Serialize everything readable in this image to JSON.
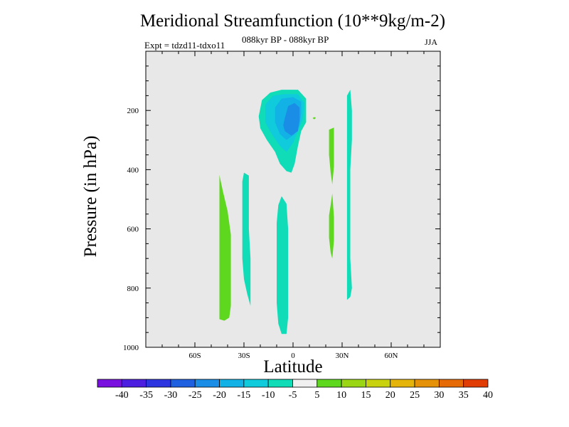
{
  "chart_data": {
    "type": "contour",
    "title": "Meridional Streamfunction (10**9kg/m-2)",
    "subtitle": "088kyr BP - 088kyr BP",
    "left_label": "Expt = tdzd11-tdxo11",
    "right_label": "JJA",
    "xlabel": "Latitude",
    "ylabel": "Pressure (in hPa)",
    "xlim": [
      -90,
      90
    ],
    "ylim": [
      1000,
      0
    ],
    "x_ticks": [
      -60,
      -30,
      0,
      30,
      60
    ],
    "x_tick_labels": [
      "60S",
      "30S",
      "0",
      "30N",
      "60N"
    ],
    "y_ticks": [
      200,
      400,
      600,
      800,
      1000
    ],
    "y_tick_labels": [
      "200",
      "400",
      "600",
      "800",
      "1000"
    ],
    "background_color": "#e8e8e8",
    "colorbar": {
      "labels": [
        "-40",
        "-35",
        "-30",
        "-25",
        "-20",
        "-15",
        "-10",
        "-5",
        "5",
        "10",
        "15",
        "20",
        "25",
        "30",
        "35",
        "40"
      ],
      "colors": [
        "#7a10e0",
        "#4b1ee0",
        "#2c35e0",
        "#1e60e0",
        "#1a8ee6",
        "#13b2e6",
        "#0fcbdc",
        "#10dcb8",
        "#f0f0f0",
        "#5ed81e",
        "#9ad614",
        "#c8d20e",
        "#e4b40a",
        "#e69208",
        "#e66a06",
        "#e03c04"
      ]
    },
    "regions": [
      {
        "name": "region-green-50s",
        "level": "5 to 10",
        "color": "#5ed81e",
        "points": [
          [
            -45,
            418
          ],
          [
            -43,
            470
          ],
          [
            -40,
            540
          ],
          [
            -38,
            620
          ],
          [
            -38,
            700
          ],
          [
            -38,
            780
          ],
          [
            -38,
            860
          ],
          [
            -39,
            900
          ],
          [
            -42,
            910
          ],
          [
            -45,
            905
          ],
          [
            -45,
            850
          ],
          [
            -45,
            750
          ],
          [
            -45,
            650
          ],
          [
            -45,
            550
          ]
        ]
      },
      {
        "name": "region-cyan-30s",
        "level": "-10 to -5",
        "color": "#10dcb8",
        "points": [
          [
            -30,
            410
          ],
          [
            -27,
            420
          ],
          [
            -27,
            500
          ],
          [
            -27,
            600
          ],
          [
            -26,
            700
          ],
          [
            -26,
            800
          ],
          [
            -26,
            860
          ],
          [
            -28,
            820
          ],
          [
            -30,
            770
          ],
          [
            -31,
            700
          ],
          [
            -31,
            600
          ],
          [
            -31,
            500
          ],
          [
            -31,
            440
          ]
        ]
      },
      {
        "name": "region-cyan-eq-lower",
        "level": "-10 to -5",
        "color": "#10dcb8",
        "points": [
          [
            -9,
            520
          ],
          [
            -7,
            490
          ],
          [
            -4,
            515
          ],
          [
            -3,
            600
          ],
          [
            -3,
            700
          ],
          [
            -3,
            800
          ],
          [
            -3,
            900
          ],
          [
            -4,
            955
          ],
          [
            -7,
            955
          ],
          [
            -9,
            920
          ],
          [
            -10,
            850
          ],
          [
            -10,
            750
          ],
          [
            -10,
            650
          ],
          [
            -10,
            580
          ]
        ]
      },
      {
        "name": "region-cyan-eq-upper",
        "level": "-10 to -5",
        "color": "#10dcb8",
        "points": [
          [
            -19,
            165
          ],
          [
            -14,
            140
          ],
          [
            -7,
            130
          ],
          [
            3,
            130
          ],
          [
            8,
            160
          ],
          [
            8,
            200
          ],
          [
            8,
            240
          ],
          [
            5,
            270
          ],
          [
            3,
            320
          ],
          [
            1,
            380
          ],
          [
            -1,
            410
          ],
          [
            -4,
            405
          ],
          [
            -8,
            380
          ],
          [
            -11,
            340
          ],
          [
            -16,
            300
          ],
          [
            -20,
            260
          ],
          [
            -21,
            220
          ]
        ]
      },
      {
        "name": "region-cyan-upper-inner",
        "level": "-15 to -10",
        "color": "#0fcbdc",
        "points": [
          [
            -17,
            180
          ],
          [
            -12,
            150
          ],
          [
            -5,
            145
          ],
          [
            3,
            145
          ],
          [
            7,
            175
          ],
          [
            6,
            230
          ],
          [
            3,
            270
          ],
          [
            0,
            310
          ],
          [
            -4,
            340
          ],
          [
            -8,
            320
          ],
          [
            -13,
            280
          ],
          [
            -17,
            240
          ]
        ]
      },
      {
        "name": "region-blue-upper",
        "level": "-20 to -15",
        "color": "#13b2e6",
        "points": [
          [
            -11,
            190
          ],
          [
            -7,
            160
          ],
          [
            0,
            155
          ],
          [
            5,
            170
          ],
          [
            5,
            210
          ],
          [
            4,
            250
          ],
          [
            1,
            280
          ],
          [
            -4,
            300
          ],
          [
            -8,
            280
          ],
          [
            -11,
            240
          ]
        ]
      },
      {
        "name": "region-blue-core",
        "level": "-25 to -20",
        "color": "#1a8ee6",
        "points": [
          [
            -5,
            225
          ],
          [
            -3,
            185
          ],
          [
            1,
            175
          ],
          [
            4,
            190
          ],
          [
            4,
            230
          ],
          [
            3,
            270
          ],
          [
            -1,
            285
          ],
          [
            -5,
            270
          ],
          [
            -6,
            250
          ]
        ]
      },
      {
        "name": "region-green-speck",
        "level": "5 to 10",
        "color": "#5ed81e",
        "points": [
          [
            13,
            222
          ],
          [
            14,
            225
          ],
          [
            13,
            230
          ],
          [
            12,
            226
          ]
        ]
      },
      {
        "name": "region-green-20n-upper",
        "level": "5 to 10",
        "color": "#5ed81e",
        "points": [
          [
            22,
            265
          ],
          [
            25,
            258
          ],
          [
            25,
            320
          ],
          [
            25,
            390
          ],
          [
            24,
            450
          ],
          [
            23,
            410
          ],
          [
            22,
            350
          ],
          [
            22,
            300
          ]
        ]
      },
      {
        "name": "region-green-20n-lower",
        "level": "5 to 10",
        "color": "#5ed81e",
        "points": [
          [
            22,
            555
          ],
          [
            23,
            520
          ],
          [
            24,
            480
          ],
          [
            25,
            560
          ],
          [
            25,
            640
          ],
          [
            24,
            700
          ],
          [
            23,
            680
          ],
          [
            22,
            630
          ]
        ]
      },
      {
        "name": "region-cyan-30n",
        "level": "-10 to -5",
        "color": "#10dcb8",
        "points": [
          [
            33,
            150
          ],
          [
            35,
            130
          ],
          [
            36,
            200
          ],
          [
            36,
            300
          ],
          [
            35,
            400
          ],
          [
            35,
            500
          ],
          [
            35,
            600
          ],
          [
            35,
            700
          ],
          [
            36,
            800
          ],
          [
            35,
            830
          ],
          [
            33,
            840
          ],
          [
            33,
            800
          ],
          [
            33,
            700
          ],
          [
            33,
            600
          ],
          [
            33,
            500
          ],
          [
            33,
            400
          ],
          [
            33,
            300
          ],
          [
            33,
            200
          ]
        ]
      }
    ]
  }
}
